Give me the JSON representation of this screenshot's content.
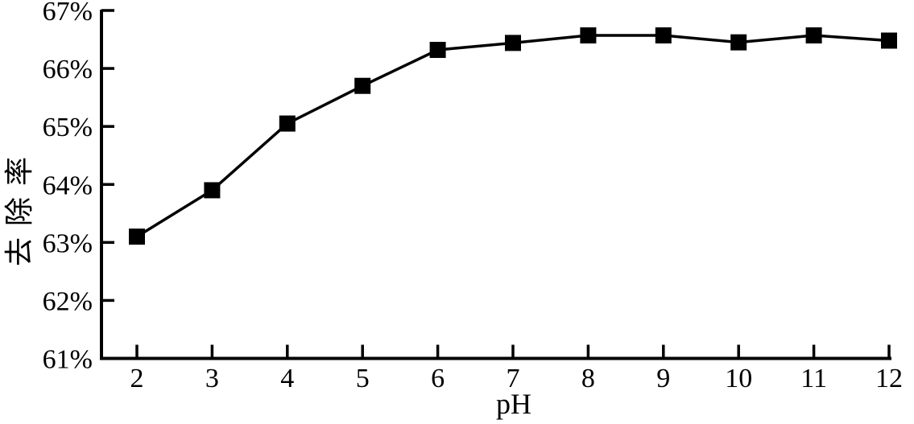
{
  "chart_data": {
    "type": "line",
    "title": "",
    "xlabel": "pH",
    "ylabel": "去除率",
    "x": [
      2,
      3,
      4,
      5,
      6,
      7,
      8,
      9,
      10,
      11,
      12
    ],
    "series": [
      {
        "name": "去除率",
        "values": [
          63.1,
          63.9,
          65.05,
          65.7,
          66.32,
          66.44,
          66.57,
          66.57,
          66.45,
          66.57,
          66.48
        ]
      }
    ],
    "xtick_labels": [
      "2",
      "3",
      "4",
      "5",
      "6",
      "7",
      "8",
      "9",
      "10",
      "11",
      "12"
    ],
    "ytick_values": [
      61,
      62,
      63,
      64,
      65,
      66,
      67
    ],
    "ytick_labels": [
      "61%",
      "62%",
      "63%",
      "64%",
      "65%",
      "66%",
      "67%"
    ],
    "ylim": [
      61,
      67
    ],
    "xlim": [
      1.55,
      12
    ],
    "grid": false,
    "legend": "none",
    "marker": "filled-square",
    "colors": {
      "line": "#000000",
      "marker": "#000000",
      "axis": "#000000",
      "text": "#000000",
      "background": "#ffffff"
    }
  }
}
